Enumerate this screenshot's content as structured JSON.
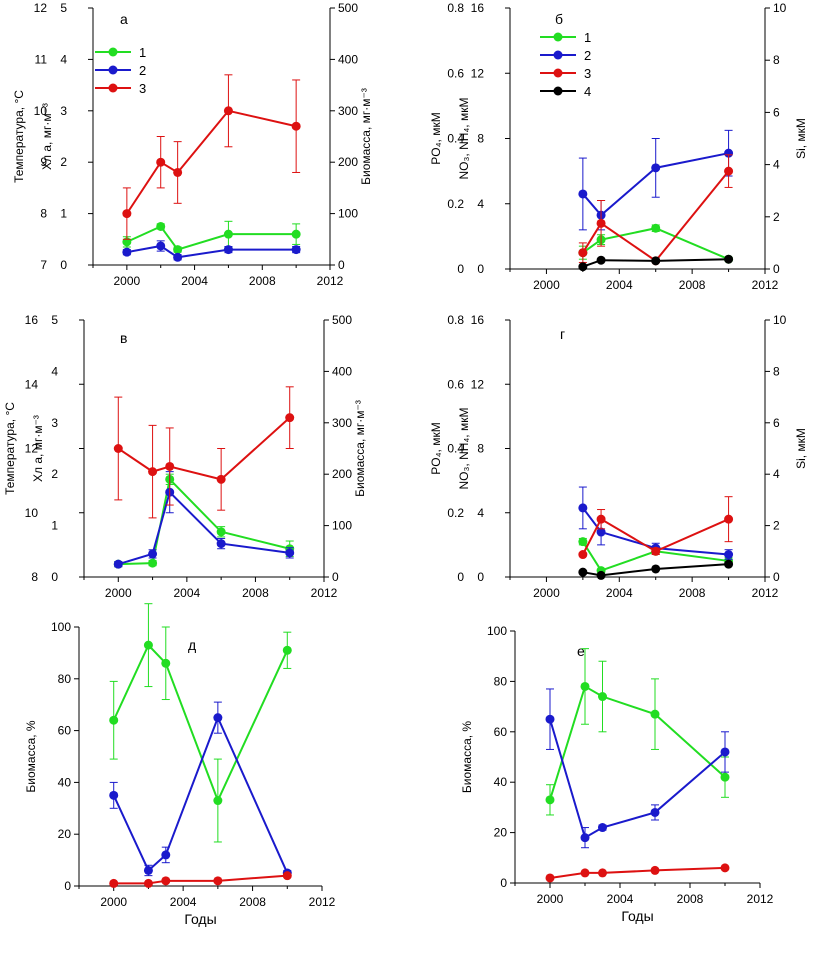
{
  "colors": {
    "s1": "#22dd22",
    "s2": "#1a1acc",
    "s3": "#dd1111",
    "s4": "#000000",
    "axis": "#000000"
  },
  "chart_data": [
    {
      "id": "a",
      "type": "line",
      "panel_label": "а",
      "xlim": [
        1998,
        2012
      ],
      "xticks": [
        2000,
        2004,
        2008,
        2012
      ],
      "xlabel": "",
      "axes": [
        {
          "side": "left",
          "offset": 0,
          "label": "Температура, °C",
          "lim": [
            7,
            12
          ],
          "ticks": [
            7,
            8,
            9,
            10,
            11,
            12
          ]
        },
        {
          "side": "left",
          "offset": 1,
          "label": "Хл a, мг·м⁻³",
          "lim": [
            0,
            5
          ],
          "ticks": [
            0,
            1,
            2,
            3,
            4,
            5
          ]
        },
        {
          "side": "right",
          "offset": 0,
          "label": "Биомасса, мг·м⁻³",
          "lim": [
            0,
            500
          ],
          "ticks": [
            0,
            100,
            200,
            300,
            400,
            500
          ]
        }
      ],
      "legend": {
        "placement": "top-left",
        "entries": [
          "1",
          "2",
          "3"
        ]
      },
      "series": [
        {
          "name": "1",
          "color": "s1",
          "axis": 1,
          "x": [
            2000,
            2002,
            2003,
            2006,
            2010
          ],
          "y": [
            0.45,
            0.75,
            0.3,
            0.6,
            0.6
          ],
          "err": [
            0.1,
            0.05,
            0.05,
            0.25,
            0.2
          ]
        },
        {
          "name": "2",
          "color": "s2",
          "axis": 1,
          "x": [
            2000,
            2002,
            2003,
            2006,
            2010
          ],
          "y": [
            0.25,
            0.37,
            0.15,
            0.3,
            0.3
          ],
          "err": [
            0.05,
            0.1,
            0.05,
            0.06,
            0.06
          ]
        },
        {
          "name": "3",
          "color": "s3",
          "axis": 1,
          "x": [
            2000,
            2002,
            2003,
            2006,
            2010
          ],
          "y": [
            1.0,
            2.0,
            1.8,
            3.0,
            2.7
          ],
          "err": [
            0.5,
            0.5,
            0.6,
            0.7,
            0.9
          ]
        }
      ]
    },
    {
      "id": "b",
      "type": "line",
      "panel_label": "б",
      "xlim": [
        1998,
        2012
      ],
      "xticks": [
        2000,
        2004,
        2008,
        2012
      ],
      "xlabel": "",
      "axes": [
        {
          "side": "left",
          "offset": 0,
          "label": "PO₄, мкМ",
          "lim": [
            0,
            0.8
          ],
          "ticks": [
            0,
            0.2,
            0.4,
            0.6,
            0.8
          ]
        },
        {
          "side": "left",
          "offset": 1,
          "label": "NO₃, NH₄, мкМ",
          "lim": [
            0,
            16
          ],
          "ticks": [
            0,
            4,
            8,
            12,
            16
          ]
        },
        {
          "side": "right",
          "offset": 0,
          "label": "Si, мкМ",
          "lim": [
            0,
            10
          ],
          "ticks": [
            0,
            2,
            4,
            6,
            8,
            10
          ]
        }
      ],
      "legend": {
        "placement": "top-left",
        "entries": [
          "1",
          "2",
          "3",
          "4"
        ]
      },
      "series": [
        {
          "name": "1",
          "color": "s1",
          "axis": 0,
          "x": [
            2002,
            2003,
            2006,
            2010
          ],
          "y": [
            0.05,
            0.09,
            0.125,
            0.03
          ],
          "err": [
            0.02,
            0.015,
            0.01,
            0.005
          ]
        },
        {
          "name": "2",
          "color": "s2",
          "axis": 0,
          "x": [
            2002,
            2003,
            2006,
            2010
          ],
          "y": [
            0.23,
            0.165,
            0.31,
            0.355
          ],
          "err": [
            0.11,
            0.045,
            0.09,
            0.07
          ]
        },
        {
          "name": "3",
          "color": "s3",
          "axis": 0,
          "x": [
            2002,
            2003,
            2006,
            2010
          ],
          "y": [
            0.05,
            0.14,
            0.025,
            0.3
          ],
          "err": [
            0.03,
            0.07,
            0.005,
            0.05
          ]
        },
        {
          "name": "4",
          "color": "s4",
          "axis": 0,
          "x": [
            2002,
            2003,
            2006,
            2010
          ],
          "y": [
            0.007,
            0.027,
            0.025,
            0.03
          ],
          "err": [
            0,
            0,
            0,
            0
          ]
        }
      ]
    },
    {
      "id": "c",
      "type": "line",
      "panel_label": "в",
      "xlim": [
        1998,
        2012
      ],
      "xticks": [
        2000,
        2004,
        2008,
        2012
      ],
      "xlabel": "",
      "axes": [
        {
          "side": "left",
          "offset": 0,
          "label": "Температура, °C",
          "lim": [
            8,
            16
          ],
          "ticks": [
            8,
            10,
            12,
            14,
            16
          ]
        },
        {
          "side": "left",
          "offset": 1,
          "label": "Хл a, мг·м⁻³",
          "lim": [
            0,
            5
          ],
          "ticks": [
            0,
            1,
            2,
            3,
            4,
            5
          ]
        },
        {
          "side": "right",
          "offset": 0,
          "label": "Биомасса, мг·м⁻³",
          "lim": [
            0,
            500
          ],
          "ticks": [
            0,
            100,
            200,
            300,
            400,
            500
          ]
        }
      ],
      "series": [
        {
          "name": "1",
          "color": "s1",
          "axis": 1,
          "x": [
            2000,
            2002,
            2003,
            2006,
            2010
          ],
          "y": [
            0.25,
            0.27,
            1.9,
            0.88,
            0.55
          ],
          "err": [
            0.05,
            0.05,
            0.1,
            0.1,
            0.15
          ]
        },
        {
          "name": "2",
          "color": "s2",
          "axis": 1,
          "x": [
            2000,
            2002,
            2003,
            2006,
            2010
          ],
          "y": [
            0.25,
            0.45,
            1.65,
            0.65,
            0.47
          ],
          "err": [
            0.05,
            0.08,
            0.4,
            0.1,
            0.1
          ]
        },
        {
          "name": "3",
          "color": "s3",
          "axis": 1,
          "x": [
            2000,
            2002,
            2003,
            2006,
            2010
          ],
          "y": [
            2.5,
            2.05,
            2.15,
            1.9,
            3.1
          ],
          "err": [
            1.0,
            0.9,
            0.75,
            0.6,
            0.6
          ]
        }
      ]
    },
    {
      "id": "d",
      "type": "line",
      "panel_label": "г",
      "xlim": [
        1998,
        2012
      ],
      "xticks": [
        2000,
        2004,
        2008,
        2012
      ],
      "xlabel": "",
      "axes": [
        {
          "side": "left",
          "offset": 0,
          "label": "PO₄, мкМ",
          "lim": [
            0,
            0.8
          ],
          "ticks": [
            0,
            0.2,
            0.4,
            0.6,
            0.8
          ]
        },
        {
          "side": "left",
          "offset": 1,
          "label": "NO₃, NH₄, мкМ",
          "lim": [
            0,
            16
          ],
          "ticks": [
            0,
            4,
            8,
            12,
            16
          ]
        },
        {
          "side": "right",
          "offset": 0,
          "label": "Si, мкМ",
          "lim": [
            0,
            10
          ],
          "ticks": [
            0,
            2,
            4,
            6,
            8,
            10
          ]
        }
      ],
      "series": [
        {
          "name": "1",
          "color": "s1",
          "axis": 0,
          "x": [
            2002,
            2003,
            2006,
            2010
          ],
          "y": [
            0.11,
            0.02,
            0.08,
            0.05
          ],
          "err": [
            0.01,
            0.005,
            0.01,
            0.01
          ]
        },
        {
          "name": "2",
          "color": "s2",
          "axis": 0,
          "x": [
            2002,
            2003,
            2006,
            2010
          ],
          "y": [
            0.215,
            0.14,
            0.09,
            0.07
          ],
          "err": [
            0.065,
            0.04,
            0.015,
            0.015
          ]
        },
        {
          "name": "3",
          "color": "s3",
          "axis": 0,
          "x": [
            2002,
            2003,
            2006,
            2010
          ],
          "y": [
            0.07,
            0.18,
            0.08,
            0.18
          ],
          "err": [
            0.005,
            0.03,
            0.01,
            0.07
          ]
        },
        {
          "name": "4",
          "color": "s4",
          "axis": 0,
          "x": [
            2002,
            2003,
            2006,
            2010
          ],
          "y": [
            0.015,
            0.005,
            0.025,
            0.04
          ],
          "err": [
            0,
            0,
            0,
            0
          ]
        }
      ]
    },
    {
      "id": "e",
      "type": "line",
      "panel_label": "д",
      "xlim": [
        1998,
        2012
      ],
      "xticks": [
        2000,
        2004,
        2008,
        2012
      ],
      "xlabel": "Годы",
      "axes": [
        {
          "side": "left",
          "offset": 0,
          "label": "Биомасса, %",
          "lim": [
            0,
            100
          ],
          "ticks": [
            0,
            20,
            40,
            60,
            80,
            100
          ]
        }
      ],
      "series": [
        {
          "name": "1",
          "color": "s1",
          "axis": 0,
          "x": [
            2000,
            2002,
            2003,
            2006,
            2010
          ],
          "y": [
            64,
            93,
            86,
            33,
            91
          ],
          "err": [
            15,
            16,
            14,
            16,
            7
          ]
        },
        {
          "name": "2",
          "color": "s2",
          "axis": 0,
          "x": [
            2000,
            2002,
            2003,
            2006,
            2010
          ],
          "y": [
            35,
            6,
            12,
            65,
            5
          ],
          "err": [
            5,
            2,
            3,
            6,
            1
          ]
        },
        {
          "name": "3",
          "color": "s3",
          "axis": 0,
          "x": [
            2000,
            2002,
            2003,
            2006,
            2010
          ],
          "y": [
            1,
            1,
            2,
            2,
            4
          ],
          "err": [
            0.5,
            0.5,
            0.5,
            0.5,
            0.5
          ]
        }
      ]
    },
    {
      "id": "f",
      "type": "line",
      "panel_label": "е",
      "xlim": [
        1998,
        2012
      ],
      "xticks": [
        2000,
        2004,
        2008,
        2012
      ],
      "xlabel": "Годы",
      "axes": [
        {
          "side": "left",
          "offset": 0,
          "label": "Биомасса, %",
          "lim": [
            0,
            100
          ],
          "ticks": [
            0,
            20,
            40,
            60,
            80,
            100
          ]
        }
      ],
      "series": [
        {
          "name": "1",
          "color": "s1",
          "axis": 0,
          "x": [
            2000,
            2002,
            2003,
            2006,
            2010
          ],
          "y": [
            33,
            78,
            74,
            67,
            42
          ],
          "err": [
            6,
            15,
            14,
            14,
            8
          ]
        },
        {
          "name": "2",
          "color": "s2",
          "axis": 0,
          "x": [
            2000,
            2002,
            2003,
            2006,
            2010
          ],
          "y": [
            65,
            18,
            22,
            28,
            52
          ],
          "err": [
            12,
            4,
            1,
            3,
            8
          ]
        },
        {
          "name": "3",
          "color": "s3",
          "axis": 0,
          "x": [
            2000,
            2002,
            2003,
            2006,
            2010
          ],
          "y": [
            2,
            4,
            4,
            5,
            6
          ],
          "err": [
            0.5,
            0.5,
            0.5,
            0.5,
            0.5
          ]
        }
      ]
    }
  ]
}
